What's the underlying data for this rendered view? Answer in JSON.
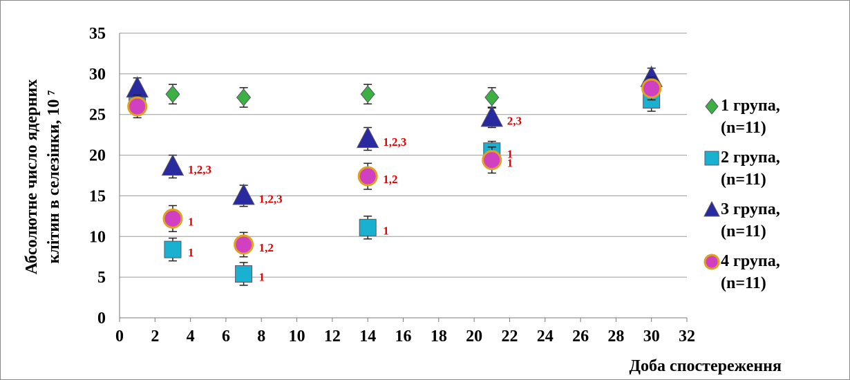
{
  "chart_data": {
    "type": "scatter",
    "y_label": [
      "Абсолютне число ядерних",
      "клітин в селезінки, 10 ⁷"
    ],
    "x_label": "Доба спостереження",
    "xlim": [
      0,
      32
    ],
    "xticks": [
      0,
      2,
      4,
      6,
      8,
      10,
      12,
      14,
      16,
      18,
      20,
      22,
      24,
      26,
      28,
      30,
      32
    ],
    "ylim": [
      0,
      35
    ],
    "yticks": [
      0,
      5,
      10,
      15,
      20,
      25,
      30,
      35
    ],
    "grid": true,
    "x": [
      1,
      3,
      7,
      14,
      21,
      30
    ],
    "series": [
      {
        "name": "1 група, (n=11)",
        "marker": "diamond",
        "color": "#3cb043",
        "values": [
          27.2,
          27.5,
          27.1,
          27.5,
          27.1,
          28.6
        ],
        "errors": [
          1.2,
          1.2,
          1.2,
          1.2,
          1.2,
          1.2
        ],
        "annotations": [
          null,
          null,
          null,
          null,
          null,
          null
        ]
      },
      {
        "name": "2 група, (n=11)",
        "marker": "square",
        "color": "#1ab0d0",
        "values": [
          26.5,
          8.4,
          5.4,
          11.1,
          20.5,
          26.8
        ],
        "errors": [
          1.2,
          1.4,
          1.4,
          1.4,
          1.2,
          1.4
        ],
        "annotations": [
          null,
          "1",
          "1",
          "1",
          "1",
          null
        ]
      },
      {
        "name": "3 група, (n=11)",
        "marker": "triangle",
        "color": "#2a2aa0",
        "values": [
          28.2,
          18.6,
          15.0,
          22.0,
          24.6,
          29.5
        ],
        "errors": [
          1.3,
          1.4,
          1.3,
          1.4,
          1.2,
          1.2
        ],
        "annotations": [
          null,
          "1,2,3",
          "1,2,3",
          "1,2,3",
          "2,3",
          null
        ]
      },
      {
        "name": "4 група, (n=11)",
        "marker": "circle",
        "color": "#d040c0",
        "values": [
          26.0,
          12.2,
          9.0,
          17.4,
          19.4,
          28.2
        ],
        "errors": [
          1.4,
          1.6,
          1.5,
          1.6,
          1.6,
          1.4
        ],
        "annotations": [
          null,
          "1",
          "1,2",
          "1,2",
          "1",
          null
        ]
      }
    ]
  }
}
